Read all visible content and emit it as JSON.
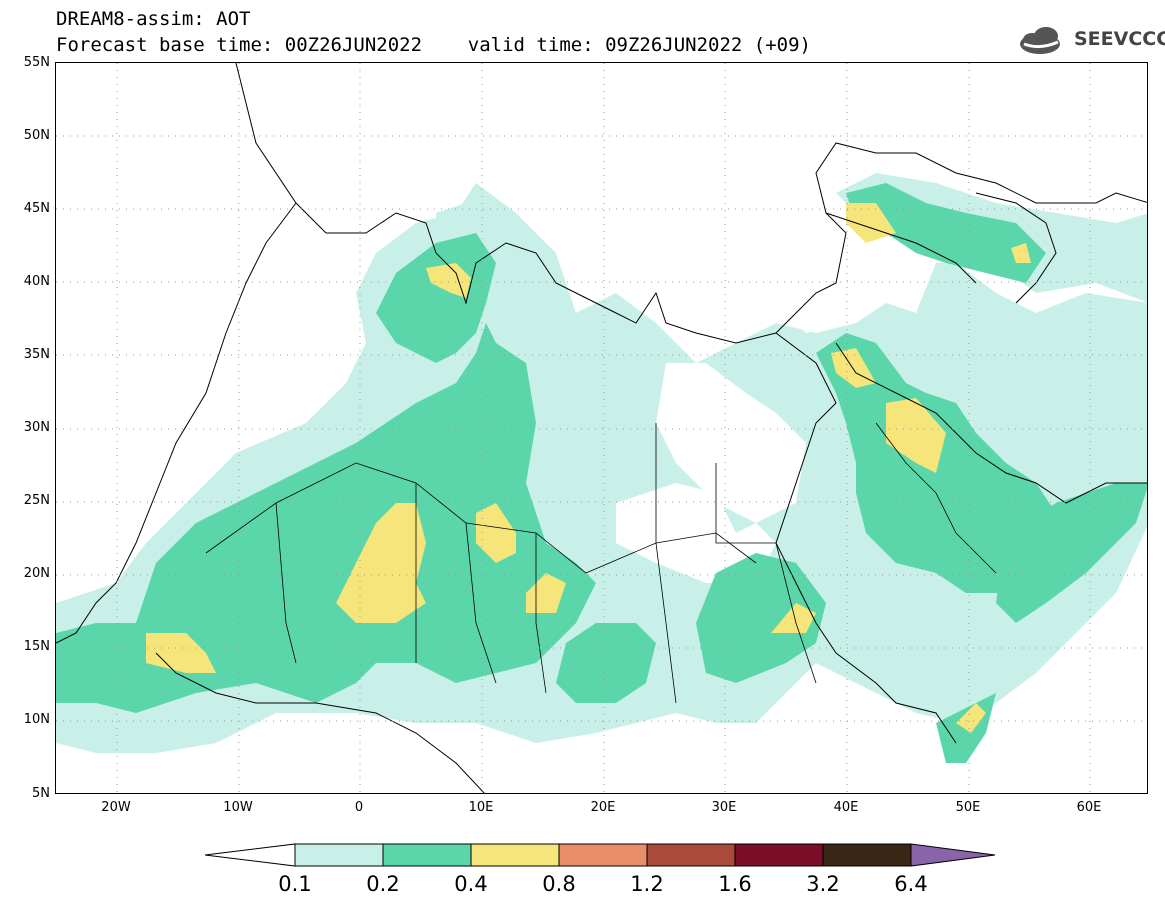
{
  "header": {
    "line1": "DREAM8-assim: AOT",
    "line2": "Forecast base time: 00Z26JUN2022    valid time: 09Z26JUN2022 (+09)"
  },
  "logo": {
    "text": "SEEVCCC",
    "icon": "cloud-logo-icon",
    "color": "#555555"
  },
  "map": {
    "lat_labels": [
      "55N",
      "50N",
      "45N",
      "40N",
      "35N",
      "30N",
      "25N",
      "20N",
      "15N",
      "10N",
      "5N"
    ],
    "lon_labels": [
      "20W",
      "10W",
      "0",
      "10E",
      "20E",
      "30E",
      "40E",
      "50E",
      "60E"
    ],
    "gridlines": "dotted",
    "fields": [
      {
        "name": "plume-west-africa",
        "level": 0.2
      },
      {
        "name": "plume-mauritania-mali",
        "level": 0.4
      },
      {
        "name": "plume-arabia",
        "level": 0.4
      },
      {
        "name": "plume-caspian",
        "level": 0.4
      }
    ]
  },
  "colorbar": {
    "labels": [
      "0.1",
      "0.2",
      "0.4",
      "0.8",
      "1.2",
      "1.6",
      "3.2",
      "6.4"
    ],
    "colors": [
      "#ffffff",
      "#c8f0e8",
      "#5ad6aa",
      "#f5e57a",
      "#e88e68",
      "#aa4a3a",
      "#7a0d28",
      "#3a2614",
      "#8a64a8"
    ]
  }
}
